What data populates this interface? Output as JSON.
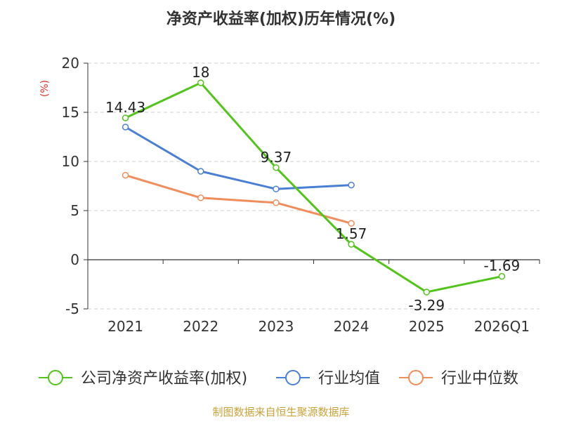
{
  "chart_data": {
    "type": "line",
    "title": "净资产收益率(加权)历年情况(%)",
    "ylabel": "(%)",
    "xlabel": "",
    "categories": [
      "2021",
      "2022",
      "2023",
      "2024",
      "2025",
      "2026Q1"
    ],
    "ylim": [
      -5,
      20
    ],
    "yticks": [
      20,
      15,
      10,
      5,
      0,
      -5
    ],
    "grid": true,
    "legend_position": "bottom",
    "series": [
      {
        "name": "公司净资产收益率(加权)",
        "color": "#52c41a",
        "values": [
          14.43,
          18,
          9.37,
          1.57,
          -3.29,
          -1.69
        ],
        "labels": [
          "14.43",
          "18",
          "9.37",
          "1.57",
          "-3.29",
          "-1.69"
        ]
      },
      {
        "name": "行业均值",
        "color": "#4a7fd6",
        "values": [
          13.5,
          9.0,
          7.2,
          7.6,
          null,
          null
        ],
        "labels": []
      },
      {
        "name": "行业中位数",
        "color": "#f28c5a",
        "values": [
          8.6,
          6.3,
          5.8,
          3.7,
          null,
          null
        ],
        "labels": []
      }
    ]
  },
  "source": "制图数据来自恒生聚源数据库"
}
